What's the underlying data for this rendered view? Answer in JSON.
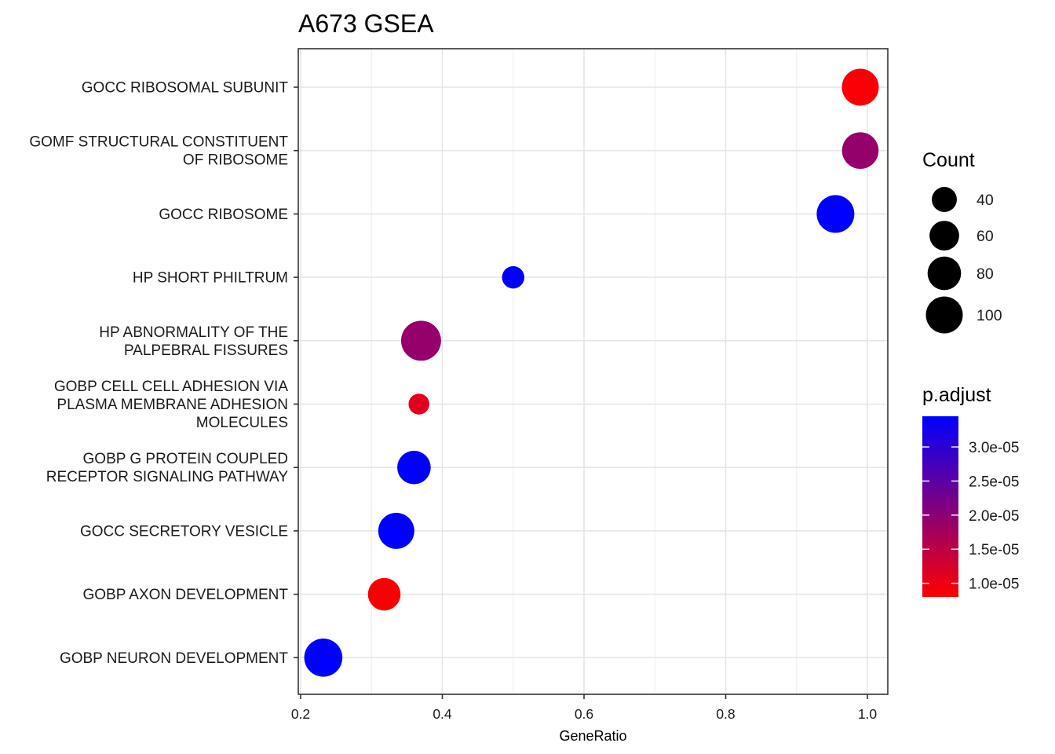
{
  "chart_data": {
    "type": "scatter",
    "title": "A673 GSEA",
    "xlabel": "GeneRatio",
    "ylabel": "",
    "xlim": [
      0.2,
      1.0
    ],
    "x_ticks": [
      {
        "value": 0.2,
        "label": "0.2"
      },
      {
        "value": 0.4,
        "label": "0.4"
      },
      {
        "value": 0.6,
        "label": "0.6"
      },
      {
        "value": 0.8,
        "label": "0.8"
      },
      {
        "value": 1.0,
        "label": "1.0"
      }
    ],
    "grid": true,
    "legend_position": "right",
    "size_legend": {
      "title": "Count",
      "entries": [
        {
          "value": 40,
          "label": "40"
        },
        {
          "value": 60,
          "label": "60"
        },
        {
          "value": 80,
          "label": "80"
        },
        {
          "value": 100,
          "label": "100"
        }
      ]
    },
    "color_legend": {
      "title": "p.adjust",
      "low_color": "#ff0000",
      "high_color": "#0000ff",
      "range": [
        8e-06,
        3.45e-05
      ],
      "ticks": [
        {
          "value": 1e-05,
          "label": "1.0e-05"
        },
        {
          "value": 1.5e-05,
          "label": "1.5e-05"
        },
        {
          "value": 2e-05,
          "label": "2.0e-05"
        },
        {
          "value": 2.5e-05,
          "label": "2.5e-05"
        },
        {
          "value": 3e-05,
          "label": "3.0e-05"
        }
      ]
    },
    "points": [
      {
        "lines": [
          "GOCC RIBOSOMAL SUBUNIT"
        ],
        "x": 0.99,
        "count": 100,
        "p_adjust": 8.5e-06
      },
      {
        "lines": [
          "GOMF STRUCTURAL CONSTITUENT",
          "OF RIBOSOME"
        ],
        "x": 0.99,
        "count": 98,
        "p_adjust": 1.9e-05
      },
      {
        "lines": [
          "GOCC RIBOSOME"
        ],
        "x": 0.955,
        "count": 105,
        "p_adjust": 3.45e-05
      },
      {
        "lines": [
          "HP SHORT PHILTRUM"
        ],
        "x": 0.5,
        "count": 30,
        "p_adjust": 3.45e-05
      },
      {
        "lines": [
          "HP ABNORMALITY OF THE",
          "PALPEBRAL FISSURES"
        ],
        "x": 0.37,
        "count": 120,
        "p_adjust": 1.9e-05
      },
      {
        "lines": [
          "GOBP CELL CELL ADHESION VIA",
          "PLASMA MEMBRANE ADHESION",
          "MOLECULES"
        ],
        "x": 0.367,
        "count": 25,
        "p_adjust": 1.1e-05
      },
      {
        "lines": [
          "GOBP G PROTEIN COUPLED",
          "RECEPTOR SIGNALING PATHWAY"
        ],
        "x": 0.36,
        "count": 80,
        "p_adjust": 3.45e-05
      },
      {
        "lines": [
          "GOCC SECRETORY VESICLE"
        ],
        "x": 0.335,
        "count": 95,
        "p_adjust": 3.45e-05
      },
      {
        "lines": [
          "GOBP AXON DEVELOPMENT"
        ],
        "x": 0.318,
        "count": 75,
        "p_adjust": 8.5e-06
      },
      {
        "lines": [
          "GOBP NEURON DEVELOPMENT"
        ],
        "x": 0.232,
        "count": 108,
        "p_adjust": 3.45e-05
      }
    ]
  }
}
